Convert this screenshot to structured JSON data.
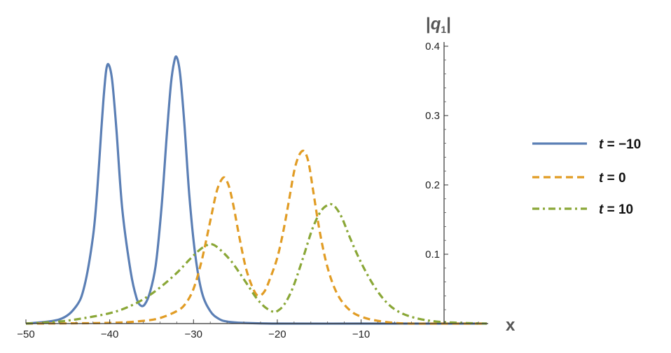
{
  "chart_data": {
    "type": "line",
    "xlabel": "x",
    "ylabel_parts": {
      "left": "|",
      "q": "q",
      "sub": "1",
      "right": "|"
    },
    "xlim": [
      -50,
      5
    ],
    "ylim": [
      0,
      0.4
    ],
    "x_ticks": [
      -50,
      -40,
      -30,
      -20,
      -10
    ],
    "x_tick_labels": [
      "−50",
      "−40",
      "−30",
      "−20",
      "−10"
    ],
    "y_ticks": [
      0.1,
      0.2,
      0.3,
      0.4
    ],
    "y_tick_labels": [
      "0.1",
      "0.2",
      "0.3",
      "0.4"
    ],
    "grid": false,
    "legend_position": "right",
    "series": [
      {
        "name": "t = −10",
        "style": "solid",
        "color": "#5b7fb5",
        "x": [
          -50,
          -46,
          -44,
          -43,
          -42,
          -41.5,
          -41,
          -40.7,
          -40.4,
          -40.1,
          -39.7,
          -39.2,
          -38.5,
          -37.5,
          -36.8,
          -36.3,
          -35.8,
          -35.2,
          -34.5,
          -33.8,
          -33.2,
          -32.7,
          -32.3,
          -32.0,
          -31.6,
          -31.1,
          -30.5,
          -29.8,
          -29.0,
          -28.0,
          -27.0,
          -26.0,
          -24.0,
          -20,
          -10,
          0,
          5
        ],
        "y": [
          0.0,
          0.006,
          0.025,
          0.055,
          0.125,
          0.19,
          0.28,
          0.33,
          0.367,
          0.373,
          0.35,
          0.28,
          0.165,
          0.075,
          0.037,
          0.026,
          0.028,
          0.045,
          0.085,
          0.17,
          0.27,
          0.345,
          0.378,
          0.384,
          0.36,
          0.29,
          0.185,
          0.1,
          0.045,
          0.018,
          0.007,
          0.003,
          0.001,
          0.0,
          0.0,
          0.0,
          0.0
        ]
      },
      {
        "name": "t = 0",
        "style": "dashed",
        "color": "#e19c24",
        "x": [
          -50,
          -40,
          -36,
          -34,
          -32,
          -31,
          -30,
          -29,
          -28,
          -27.2,
          -26.5,
          -26.1,
          -25.7,
          -25.2,
          -24.5,
          -23.7,
          -22.8,
          -22.2,
          -21.5,
          -20.8,
          -20.0,
          -19.3,
          -18.6,
          -18.0,
          -17.5,
          -17.0,
          -16.6,
          -16.2,
          -15.7,
          -15.0,
          -14.2,
          -13.3,
          -12.3,
          -11.0,
          -9.5,
          -8.0,
          -6.0,
          -4.0,
          0,
          5
        ],
        "y": [
          0.0,
          0.001,
          0.004,
          0.008,
          0.018,
          0.028,
          0.05,
          0.092,
          0.148,
          0.192,
          0.21,
          0.207,
          0.195,
          0.168,
          0.123,
          0.078,
          0.048,
          0.04,
          0.047,
          0.067,
          0.095,
          0.132,
          0.178,
          0.219,
          0.24,
          0.249,
          0.245,
          0.228,
          0.19,
          0.137,
          0.09,
          0.055,
          0.032,
          0.016,
          0.008,
          0.004,
          0.001,
          0.0,
          0.0,
          0.0
        ]
      },
      {
        "name": "t = 10",
        "style": "dashdot",
        "color": "#8aa737",
        "x": [
          -50,
          -46,
          -43,
          -40,
          -38,
          -36,
          -34,
          -32,
          -30.5,
          -29.2,
          -28.2,
          -27.5,
          -26.5,
          -25.5,
          -24.5,
          -23.5,
          -22.5,
          -21.5,
          -20.5,
          -20.0,
          -19.2,
          -18.2,
          -17.0,
          -15.8,
          -14.8,
          -14.0,
          -13.5,
          -13.0,
          -12.3,
          -11.3,
          -10.0,
          -8.5,
          -7.0,
          -5.5,
          -3.5,
          -1.0,
          2.0,
          5.0
        ],
        "y": [
          0.0,
          0.003,
          0.008,
          0.015,
          0.023,
          0.035,
          0.052,
          0.073,
          0.092,
          0.107,
          0.114,
          0.113,
          0.103,
          0.09,
          0.073,
          0.055,
          0.037,
          0.024,
          0.017,
          0.018,
          0.027,
          0.05,
          0.092,
          0.137,
          0.162,
          0.171,
          0.172,
          0.167,
          0.153,
          0.123,
          0.088,
          0.055,
          0.031,
          0.017,
          0.008,
          0.003,
          0.001,
          0.0
        ]
      }
    ]
  }
}
